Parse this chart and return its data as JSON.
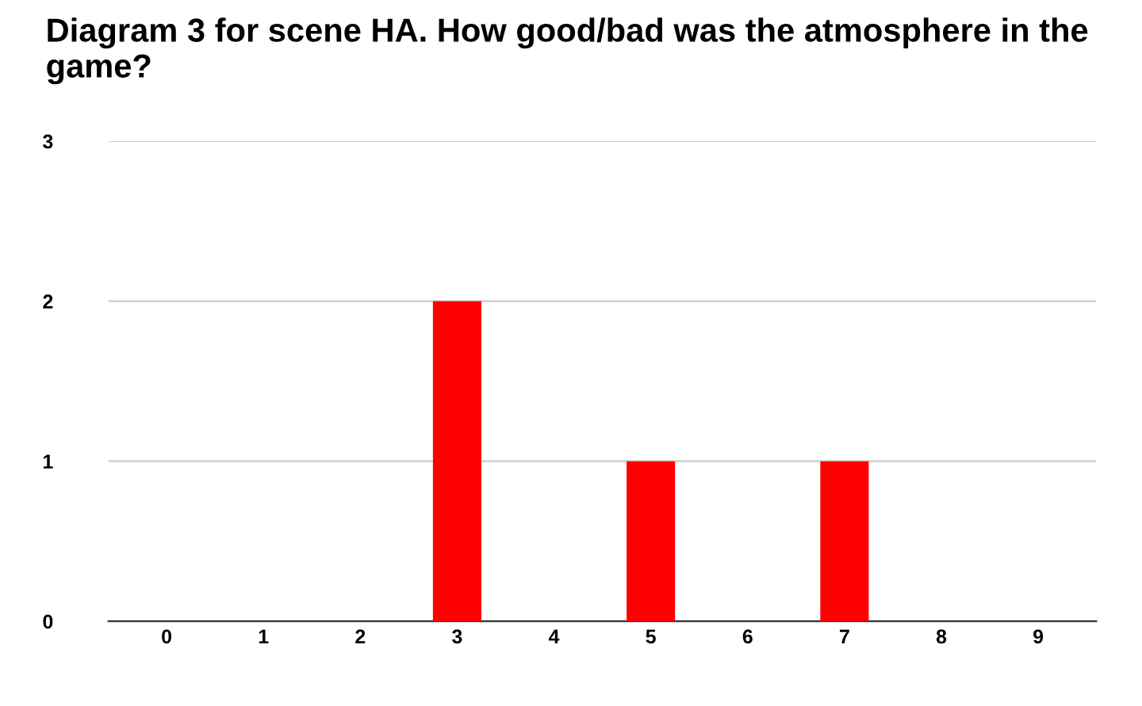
{
  "chart_data": {
    "type": "bar",
    "title": "Diagram 3 for scene HA. How good/bad was the atmosphere in the game?",
    "categories": [
      "0",
      "1",
      "2",
      "3",
      "4",
      "5",
      "6",
      "7",
      "8",
      "9"
    ],
    "values": [
      0,
      0,
      0,
      2,
      0,
      1,
      0,
      1,
      0,
      0
    ],
    "color": "#ff0000",
    "ylim": [
      0,
      3
    ],
    "yticks": [
      0,
      1,
      2,
      3
    ],
    "grid": "y"
  }
}
